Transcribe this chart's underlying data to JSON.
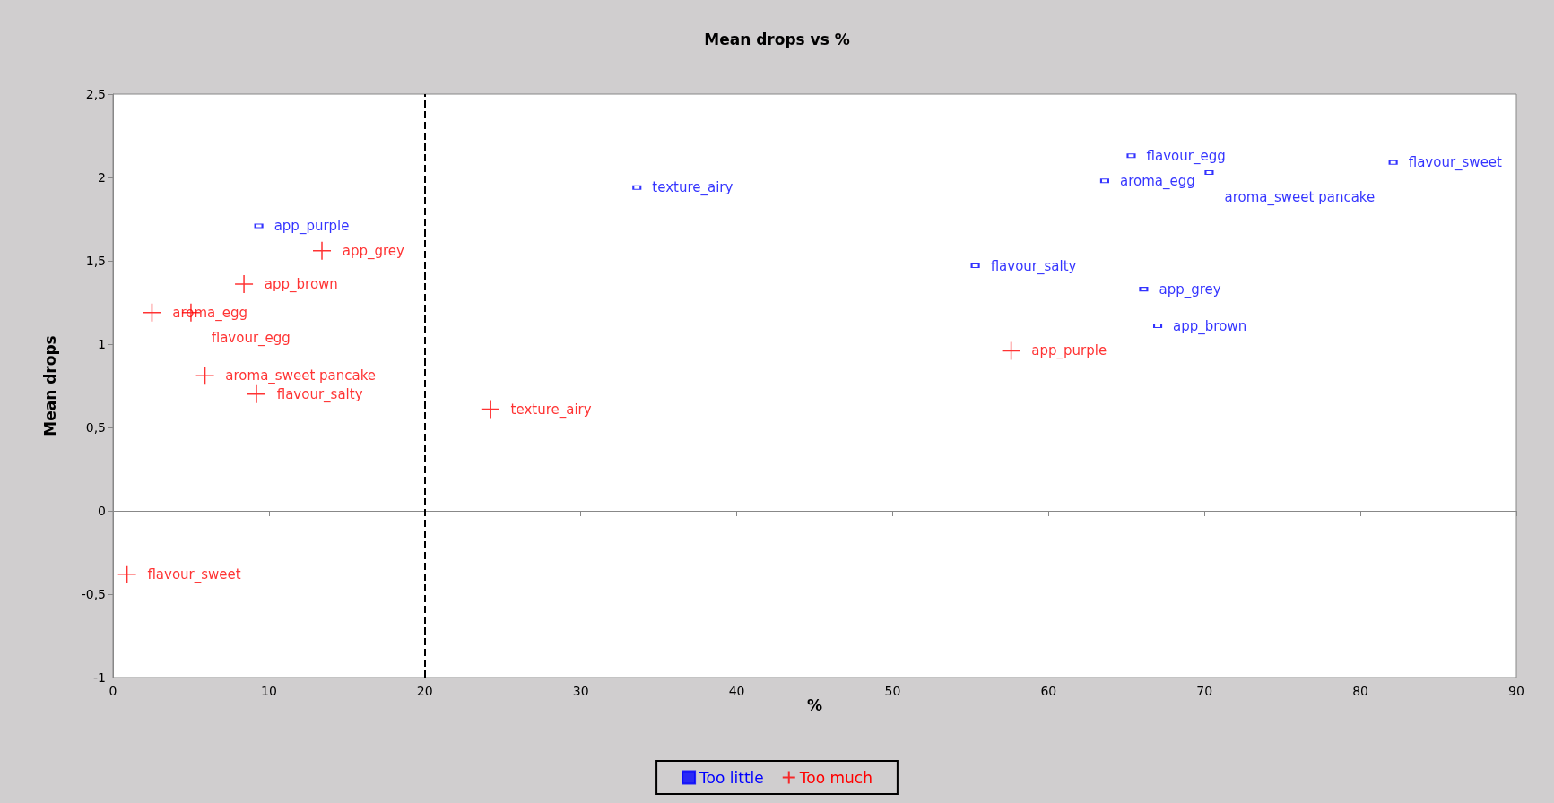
{
  "chart_data": {
    "type": "scatter",
    "title": "Mean drops vs %",
    "xlabel": "%",
    "ylabel": "Mean drops",
    "xlim": [
      0,
      90
    ],
    "xticks": [
      0,
      10,
      20,
      30,
      40,
      50,
      60,
      70,
      80,
      90
    ],
    "ylim": [
      -1,
      2.5
    ],
    "yticks": [
      {
        "value": -1,
        "label": "-1"
      },
      {
        "value": -0.5,
        "label": "-0,5"
      },
      {
        "value": 0,
        "label": "0"
      },
      {
        "value": 0.5,
        "label": "0,5"
      },
      {
        "value": 1,
        "label": "1"
      },
      {
        "value": 1.5,
        "label": "1,5"
      },
      {
        "value": 2,
        "label": "2"
      },
      {
        "value": 2.5,
        "label": "2,5"
      }
    ],
    "grid": false,
    "legend": "bottom",
    "ref_lines": [
      {
        "axis": "x",
        "value": 20,
        "color": "#000000",
        "line_style": "dashed"
      }
    ],
    "series": [
      {
        "name": "Too little",
        "color": "#0000ff",
        "marker": "square",
        "x": [
          33.6,
          9.35,
          65.3,
          63.6,
          70.3,
          82.1,
          55.3,
          66.1,
          67.0
        ],
        "values": [
          1.94,
          1.71,
          2.13,
          1.98,
          2.03,
          2.09,
          1.47,
          1.33,
          1.11
        ],
        "value_labels": [
          "texture_airy",
          "app_purple",
          "flavour_egg",
          "aroma_egg",
          "aroma_sweet pancake",
          "flavour_sweet",
          "flavour_salty",
          "app_grey",
          "app_brown"
        ]
      },
      {
        "name": "Too much",
        "color": "#ff0000",
        "marker": "cross",
        "x": [
          13.4,
          8.4,
          2.5,
          5.0,
          5.9,
          9.2,
          24.2,
          57.6,
          0.9
        ],
        "values": [
          1.56,
          1.36,
          1.19,
          1.19,
          0.81,
          0.7,
          0.61,
          0.96,
          -0.38
        ],
        "value_labels": [
          "app_grey",
          "app_brown",
          "aroma_egg",
          "flavour_egg",
          "aroma_sweet pancake",
          "flavour_salty",
          "texture_airy",
          "app_purple",
          "flavour_sweet"
        ]
      }
    ]
  }
}
